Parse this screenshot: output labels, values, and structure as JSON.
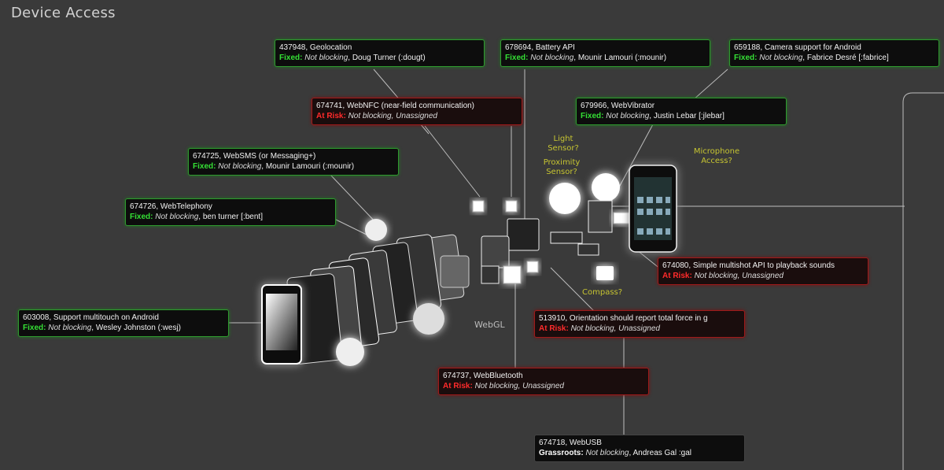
{
  "page": {
    "title": "Device Access"
  },
  "sensors": {
    "light": "Light\nSensor?",
    "proximity": "Proximity\nSensor?",
    "microphone": "Microphone\nAccess?",
    "compass": "Compass?",
    "webgl": "WebGL"
  },
  "bugs": [
    {
      "id": "437948",
      "title": "437948, Geolocation",
      "status": "Fixed:",
      "blocking": "Not blocking",
      "owner": ", Doug Turner (:dougt)",
      "kind": "fixed"
    },
    {
      "id": "678694",
      "title": "678694, Battery API",
      "status": "Fixed:",
      "blocking": "Not blocking",
      "owner": ", Mounir Lamouri (:mounir)",
      "kind": "fixed"
    },
    {
      "id": "659188",
      "title": "659188, Camera support for Android",
      "status": "Fixed:",
      "blocking": "Not blocking",
      "owner": ", Fabrice Desré [:fabrice]",
      "kind": "fixed"
    },
    {
      "id": "674741",
      "title": "674741, WebNFC (near-field communication)",
      "status": "At Risk:",
      "blocking": "Not blocking",
      "owner": ", Unassigned",
      "kind": "risk"
    },
    {
      "id": "679966",
      "title": "679966, WebVibrator",
      "status": "Fixed:",
      "blocking": "Not blocking",
      "owner": ", Justin Lebar [:jlebar]",
      "kind": "fixed"
    },
    {
      "id": "674725",
      "title": "674725, WebSMS (or Messaging+)",
      "status": "Fixed:",
      "blocking": "Not blocking",
      "owner": ", Mounir Lamouri (:mounir)",
      "kind": "fixed"
    },
    {
      "id": "674726",
      "title": "674726, WebTelephony",
      "status": "Fixed:",
      "blocking": "Not blocking",
      "owner": ", ben turner [:bent]",
      "kind": "fixed"
    },
    {
      "id": "674080",
      "title": "674080, Simple multishot API to playback sounds",
      "status": "At Risk:",
      "blocking": "Not blocking",
      "owner": ", Unassigned",
      "kind": "risk"
    },
    {
      "id": "603008",
      "title": "603008, Support multitouch on Android",
      "status": "Fixed:",
      "blocking": "Not blocking",
      "owner": ", Wesley Johnston (:wesj)",
      "kind": "fixed"
    },
    {
      "id": "513910",
      "title": "513910, Orientation should report total force in g",
      "status": "At Risk:",
      "blocking": "Not blocking",
      "owner": ", Unassigned",
      "kind": "risk"
    },
    {
      "id": "674737",
      "title": "674737, WebBluetooth",
      "status": "At Risk:",
      "blocking": "Not blocking",
      "owner": ", Unassigned",
      "kind": "risk"
    },
    {
      "id": "674718",
      "title": "674718, WebUSB",
      "status": "Grassroots:",
      "blocking": "Not blocking",
      "owner": ", Andreas Gal :gal",
      "kind": "grass"
    }
  ]
}
